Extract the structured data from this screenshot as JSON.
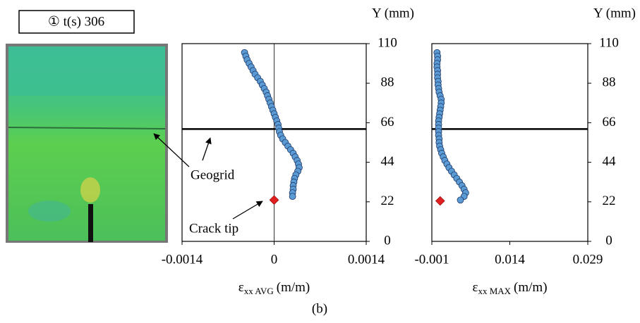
{
  "figure": {
    "label": "① t(s) 306",
    "caption": "(b)"
  },
  "chart_data": [
    {
      "type": "scatter",
      "xlabel": {
        "symbol": "ε",
        "subscript": "xx AVG",
        "unit": "(m/m)"
      },
      "ylabel": "Y (mm)",
      "xlim": [
        -0.0014,
        0.0014
      ],
      "xticks": [
        -0.0014,
        0,
        0.0014
      ],
      "ylim": [
        0,
        110
      ],
      "yticks": [
        0,
        22,
        44,
        66,
        88,
        110
      ],
      "color": "#5b9bd5",
      "zero_line": true,
      "geogrid_y": 62.5,
      "annotations": [
        "Geogrid",
        "Crack tip"
      ],
      "crack_tip": {
        "x": 0,
        "y": 23,
        "color": "#e02020"
      },
      "x": [
        -0.00045,
        -0.00043,
        -0.00041,
        -0.00038,
        -0.00035,
        -0.00032,
        -0.00029,
        -0.00025,
        -0.00021,
        -0.00018,
        -0.00015,
        -0.00012,
        -0.0001,
        -8e-05,
        -6e-05,
        -4e-05,
        -2e-05,
        0,
        2e-05,
        4e-05,
        6e-05,
        7e-05,
        8e-05,
        0.0001,
        0.00013,
        0.00017,
        0.00021,
        0.00025,
        0.00029,
        0.00032,
        0.00035,
        0.00037,
        0.00038,
        0.00036,
        0.00033,
        0.00031,
        0.0003,
        0.00029,
        0.00029,
        0.00028,
        0.00028
      ],
      "values": [
        105,
        103,
        101,
        99,
        97,
        95,
        93,
        91,
        89,
        87,
        85,
        83,
        81,
        79,
        77,
        75,
        73,
        71,
        69,
        67,
        65,
        63,
        61,
        59,
        57,
        55,
        53,
        51,
        49,
        47,
        45,
        43,
        41,
        39,
        37,
        35,
        33,
        31,
        29,
        27,
        25
      ]
    },
    {
      "type": "scatter",
      "xlabel": {
        "symbol": "ε",
        "subscript": "xx MAX",
        "unit": "(m/m)"
      },
      "ylabel": "Y (mm)",
      "xlim": [
        -0.001,
        0.029
      ],
      "xticks": [
        -0.001,
        0.014,
        0.029
      ],
      "ylim": [
        0,
        110
      ],
      "yticks": [
        0,
        22,
        44,
        66,
        88,
        110
      ],
      "color": "#5b9bd5",
      "geogrid_y": 62.5,
      "crack_tip": {
        "x": 0.0006,
        "y": 22.5,
        "color": "#e02020"
      },
      "x": [
        0,
        0.0001,
        0.0001,
        0,
        0,
        0.0001,
        0.0001,
        0.0001,
        0.0002,
        0.0002,
        0.0003,
        0.0004,
        0.0006,
        0.0008,
        0.0008,
        0.0007,
        0.0006,
        0.0005,
        0.0004,
        0.0003,
        0.0003,
        0.0003,
        0.0003,
        0.0003,
        0.0004,
        0.0004,
        0.0005,
        0.0007,
        0.0009,
        0.0012,
        0.0015,
        0.0019,
        0.0023,
        0.0028,
        0.0033,
        0.0038,
        0.0043,
        0.0048,
        0.0052,
        0.0055,
        0.0052,
        0.0045
      ],
      "values": [
        105,
        103,
        101,
        99,
        97,
        95,
        93,
        91,
        89,
        87,
        85,
        83,
        81,
        79,
        77,
        75,
        73,
        71,
        69,
        67,
        65,
        63,
        61,
        59,
        57,
        55,
        53,
        51,
        49,
        47,
        45,
        43,
        41,
        39,
        37,
        35,
        33,
        31,
        29,
        27,
        25,
        23
      ]
    }
  ]
}
